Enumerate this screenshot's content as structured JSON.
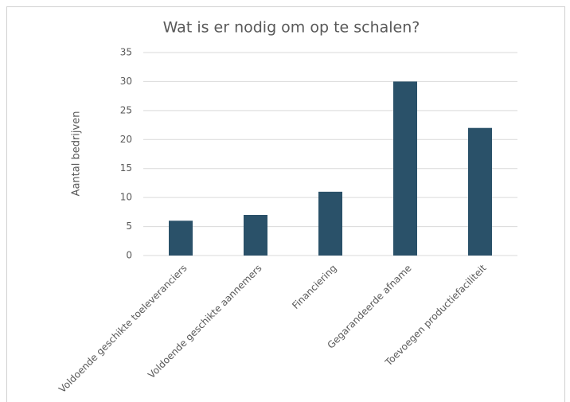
{
  "chart_data": {
    "type": "bar",
    "title": "Wat is er nodig om op te schalen?",
    "y_label": "Aantal bedrijven",
    "categories": [
      "Voldoende geschikte toeleveranciers",
      "Voldoende geschikte aannemers",
      "Financiering",
      "Gegarandeerde afname",
      "Toevoegen productiefaciliteit"
    ],
    "values": [
      6,
      7,
      11,
      30,
      22
    ],
    "color": "#2a5169",
    "ylim": [
      0,
      35
    ],
    "yticks": [
      0,
      5,
      10,
      15,
      20,
      25,
      30,
      35
    ],
    "grid": true
  }
}
